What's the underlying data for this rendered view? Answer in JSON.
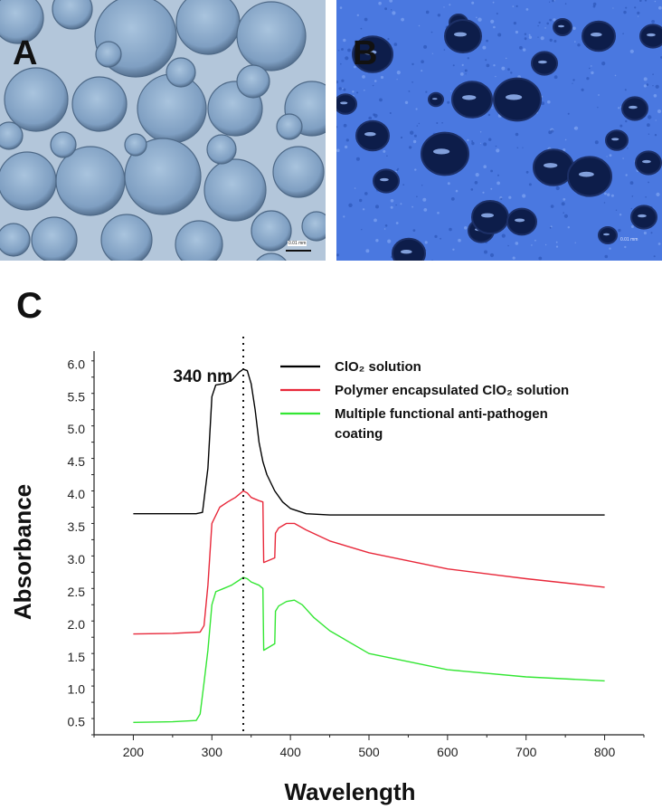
{
  "panels": {
    "a": {
      "letter": "A",
      "scale_label": "0.01 mm"
    },
    "b": {
      "letter": "B",
      "scale_label": "0.01 mm"
    },
    "c": {
      "letter": "C"
    }
  },
  "colors": {
    "clo2_solution": "#000000",
    "polymer_encapsulated": "#e8283a",
    "anti_pathogen_coating": "#33e633",
    "micrograph_a_bg": "#9fb7d1",
    "micrograph_b_bg": "#4a78e0"
  },
  "chart_data": {
    "type": "line",
    "xlabel": "Wavelength",
    "ylabel": "Absorbance",
    "xlim": [
      150,
      850
    ],
    "ylim": [
      0.3,
      6.2
    ],
    "xticks": [
      200,
      300,
      400,
      500,
      600,
      700,
      800
    ],
    "yticks": [
      0.5,
      1.0,
      1.5,
      2.0,
      2.5,
      3.0,
      3.5,
      4.0,
      4.5,
      5.0,
      5.5,
      6.0
    ],
    "yticklabels": [
      "0.5",
      "1.0",
      "1.5",
      "2.0",
      "2.5",
      "3.0",
      "3.5",
      "4.0",
      "4.5",
      "5.0",
      "5.5",
      "6.0"
    ],
    "grid": false,
    "legend_position": "top-right",
    "annotation": {
      "label": "340 nm",
      "x": 340
    },
    "series": [
      {
        "name": "ClO₂ solution",
        "color": "#000000",
        "x": [
          200,
          250,
          280,
          288,
          295,
          300,
          305,
          315,
          325,
          335,
          340,
          345,
          350,
          355,
          360,
          365,
          370,
          380,
          390,
          400,
          420,
          450,
          500,
          600,
          700,
          800
        ],
        "y": [
          3.7,
          3.7,
          3.7,
          3.72,
          4.4,
          5.5,
          5.68,
          5.7,
          5.75,
          5.88,
          5.92,
          5.9,
          5.7,
          5.3,
          4.8,
          4.5,
          4.3,
          4.05,
          3.88,
          3.78,
          3.7,
          3.68,
          3.68,
          3.68,
          3.68,
          3.68
        ]
      },
      {
        "name": "Polymer encapsulated ClO₂ solution",
        "color": "#e8283a",
        "x": [
          200,
          250,
          285,
          290,
          295,
          300,
          310,
          320,
          330,
          340,
          345,
          350,
          360,
          365,
          366,
          380,
          381,
          385,
          395,
          405,
          420,
          450,
          500,
          600,
          700,
          800
        ],
        "y": [
          1.85,
          1.86,
          1.88,
          1.98,
          2.6,
          3.55,
          3.8,
          3.88,
          3.95,
          4.05,
          4.02,
          3.95,
          3.9,
          3.88,
          2.95,
          3.02,
          3.4,
          3.48,
          3.55,
          3.55,
          3.45,
          3.28,
          3.1,
          2.85,
          2.7,
          2.57
        ]
      },
      {
        "name": "Multiple functional anti-pathogen coating",
        "color": "#33e633",
        "x": [
          200,
          250,
          280,
          285,
          290,
          295,
          300,
          305,
          315,
          325,
          335,
          340,
          345,
          350,
          360,
          365,
          366,
          380,
          381,
          385,
          395,
          405,
          415,
          430,
          450,
          500,
          600,
          700,
          800
        ],
        "y": [
          0.49,
          0.5,
          0.52,
          0.62,
          1.1,
          1.6,
          2.3,
          2.5,
          2.55,
          2.6,
          2.68,
          2.72,
          2.7,
          2.65,
          2.6,
          2.55,
          1.6,
          1.7,
          2.2,
          2.28,
          2.35,
          2.37,
          2.3,
          2.1,
          1.9,
          1.55,
          1.3,
          1.19,
          1.13
        ]
      }
    ]
  }
}
